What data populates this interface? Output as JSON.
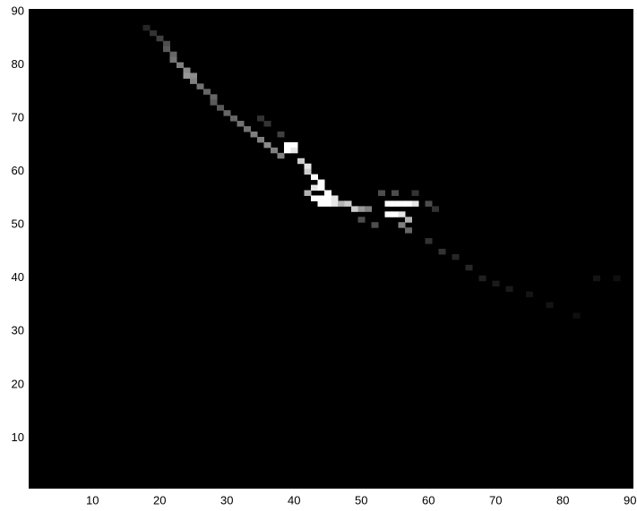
{
  "chart_data": {
    "type": "heatmap",
    "colormap": "gray",
    "clim": [
      0,
      1
    ],
    "xlim": [
      0.5,
      90.5
    ],
    "ylim": [
      0.5,
      90.5
    ],
    "xticks": [
      10,
      20,
      30,
      40,
      50,
      60,
      70,
      80,
      90
    ],
    "yticks": [
      10,
      20,
      30,
      40,
      50,
      60,
      70,
      80,
      90
    ],
    "x": [
      18,
      19,
      20,
      21,
      21,
      22,
      22,
      23,
      24,
      24,
      25,
      25,
      26,
      27,
      28,
      28,
      29,
      30,
      31,
      32,
      33,
      34,
      35,
      36,
      37,
      38,
      39,
      40,
      39,
      40,
      41,
      42,
      42,
      43,
      44,
      43,
      44,
      45,
      42,
      43,
      44,
      45,
      46,
      44,
      45,
      46,
      47,
      48,
      49,
      50,
      51,
      54,
      55,
      56,
      57,
      58,
      54,
      55,
      56,
      57,
      56,
      57,
      53,
      55,
      58,
      60,
      61,
      52,
      50,
      60,
      62,
      64,
      66,
      68,
      70,
      72,
      75,
      78,
      82,
      85,
      88,
      35,
      36,
      38
    ],
    "y": [
      87,
      86,
      85,
      84,
      83,
      82,
      81,
      80,
      79,
      78,
      78,
      77,
      76,
      75,
      74,
      73,
      72,
      71,
      70,
      69,
      68,
      67,
      66,
      65,
      64,
      63,
      65,
      65,
      64,
      64,
      62,
      61,
      60,
      59,
      58,
      57,
      57,
      56,
      56,
      55,
      55,
      55,
      55,
      54,
      54,
      54,
      54,
      54,
      53,
      53,
      53,
      54,
      54,
      54,
      54,
      54,
      52,
      52,
      52,
      51,
      50,
      49,
      56,
      56,
      56,
      54,
      53,
      50,
      51,
      47,
      45,
      44,
      42,
      40,
      39,
      38,
      37,
      35,
      33,
      40,
      40,
      70,
      69,
      67
    ],
    "values": [
      0.15,
      0.2,
      0.25,
      0.3,
      0.35,
      0.4,
      0.45,
      0.5,
      0.55,
      0.6,
      0.55,
      0.5,
      0.45,
      0.4,
      0.4,
      0.35,
      0.35,
      0.4,
      0.4,
      0.45,
      0.45,
      0.5,
      0.5,
      0.55,
      0.5,
      0.5,
      1,
      1,
      1,
      0.9,
      0.8,
      0.9,
      0.8,
      1,
      1,
      0.9,
      1,
      1,
      0.7,
      1,
      1,
      1,
      0.9,
      1,
      1,
      0.9,
      0.7,
      0.8,
      0.8,
      0.6,
      0.5,
      1,
      1,
      1,
      1,
      0.9,
      1,
      1,
      0.9,
      0.7,
      0.5,
      0.4,
      0.3,
      0.3,
      0.2,
      0.3,
      0.2,
      0.3,
      0.3,
      0.2,
      0.2,
      0.15,
      0.15,
      0.12,
      0.1,
      0.1,
      0.08,
      0.08,
      0.06,
      0.08,
      0.06,
      0.2,
      0.2,
      0.25
    ]
  }
}
